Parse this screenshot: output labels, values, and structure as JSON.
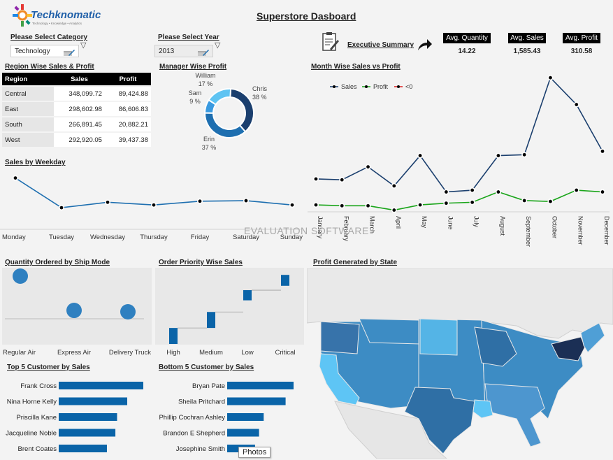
{
  "title": "Superstore Dasboard",
  "logo": {
    "name": "Techknomatic",
    "tagline": "Technology • Knowledge • Analytics"
  },
  "filters": {
    "category_label": "Please Select Category",
    "category_value": "Technology",
    "year_label": "Please Select Year",
    "year_value": "2013"
  },
  "executive_summary": "Executive Summary",
  "kpis": [
    {
      "label": "Avg. Quantity",
      "value": "14.22"
    },
    {
      "label": "Avg. Sales",
      "value": "1,585.43"
    },
    {
      "label": "Avg. Profit",
      "value": "310.58"
    }
  ],
  "watermark": "EVALUATION SOFTWARE",
  "tooltip": "Photos",
  "region_table": {
    "title": "Region Wise Sales & Profit",
    "headers": [
      "Region",
      "Sales",
      "Profit"
    ],
    "rows": [
      [
        "Central",
        "348,099.72",
        "89,424.88"
      ],
      [
        "East",
        "298,602.98",
        "86,606.83"
      ],
      [
        "South",
        "266,891.45",
        "20,882.21"
      ],
      [
        "West",
        "292,920.05",
        "39,437.38"
      ]
    ]
  },
  "chart_data": [
    {
      "type": "pie",
      "title": "Manager Wise Profit",
      "labels": [
        "Chris",
        "Erin",
        "Sam",
        "William"
      ],
      "values": [
        38,
        37,
        9,
        17
      ],
      "value_labels": [
        "38 %",
        "37 %",
        "9 %",
        "17 %"
      ],
      "colors": [
        "#1b3f6e",
        "#1e6fb0",
        "#3a9ae0",
        "#5fc4f2"
      ]
    },
    {
      "type": "line",
      "title": "Month Wise Sales vs Profit",
      "x": [
        "January",
        "February",
        "March",
        "April",
        "May",
        "June",
        "July",
        "August",
        "September",
        "October",
        "November",
        "December"
      ],
      "legend": [
        "Sales",
        "Profit",
        "<0"
      ],
      "legend_colors": [
        "#1b3f6e",
        "#1aa51a",
        "#d81b1b"
      ],
      "series": [
        {
          "name": "Sales",
          "values": [
            33,
            32,
            47,
            25,
            60,
            18,
            20,
            60,
            61,
            150,
            119,
            65
          ]
        },
        {
          "name": "Profit",
          "values": [
            3,
            2,
            2,
            -3,
            3,
            5,
            6,
            18,
            8,
            7,
            20,
            18
          ]
        }
      ],
      "ylim": [
        -5,
        155
      ]
    },
    {
      "type": "line",
      "title": "Sales by Weekday",
      "x": [
        "Monday",
        "Tuesday",
        "Wednesday",
        "Thursday",
        "Friday",
        "Saturday",
        "Sunday"
      ],
      "series": [
        {
          "values": [
            195,
            140,
            150,
            145,
            152,
            153,
            145
          ]
        }
      ],
      "ylim": [
        100,
        210
      ]
    },
    {
      "type": "scatter",
      "title": "Quantity Ordered by Ship Mode",
      "x": [
        "Regular Air",
        "Express Air",
        "Delivery Truck"
      ],
      "values": [
        120,
        60,
        58
      ]
    },
    {
      "type": "bar",
      "title": "Order Priority Wise Sales",
      "categories": [
        "High",
        "Medium",
        "Low",
        "Critical"
      ],
      "ranges": [
        [
          0,
          22
        ],
        [
          22,
          44
        ],
        [
          60,
          74
        ],
        [
          80,
          95
        ]
      ],
      "ylim": [
        0,
        100
      ]
    },
    {
      "type": "bar",
      "title": "Top 5 Customer by Sales",
      "categories": [
        "Frank Cross",
        "Nina Horne Kelly",
        "Priscilla Kane",
        "Jacqueline Noble",
        "Brent Coates"
      ],
      "values": [
        100,
        81,
        69,
        67,
        57
      ]
    },
    {
      "type": "bar",
      "title": "Bottom 5 Customer by Sales",
      "categories": [
        "Bryan Pate",
        "Sheila Pritchard",
        "Phillip Cochran Ashley",
        "Brandon E Shepherd",
        "Josephine Smith"
      ],
      "values": [
        100,
        88,
        55,
        48,
        42
      ]
    }
  ],
  "map": {
    "title": "Profit Generated by State"
  },
  "colors": {
    "dark_blue": "#1b3f6e",
    "mid_blue": "#1e6fb0",
    "bar_blue": "#0a64a8",
    "green": "#1aa51a"
  }
}
